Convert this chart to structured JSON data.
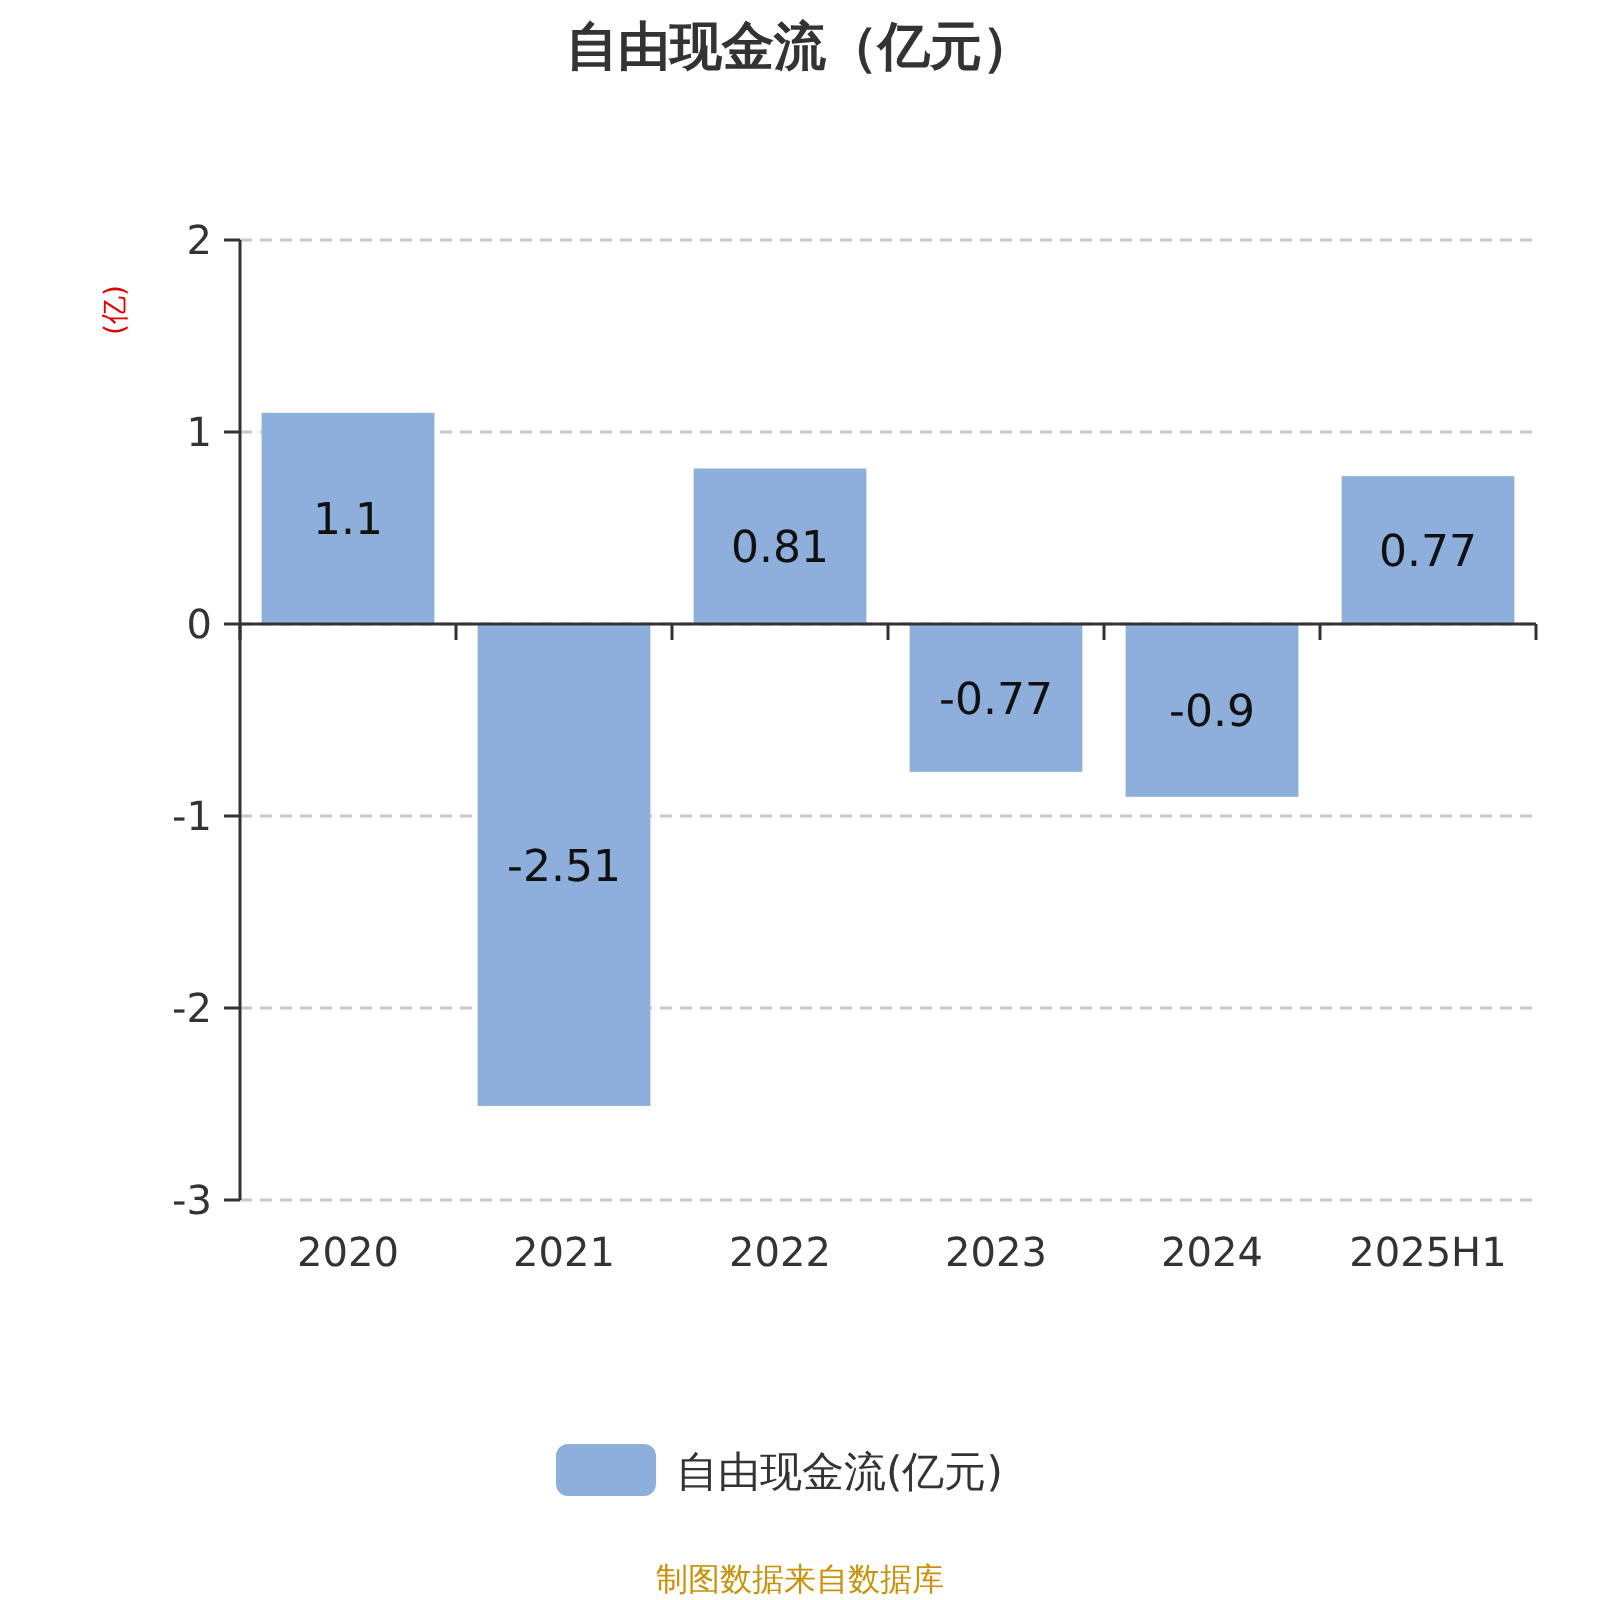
{
  "chart_data": {
    "type": "bar",
    "title": "自由现金流（亿元）",
    "ylabel": "(亿)",
    "categories": [
      "2020",
      "2021",
      "2022",
      "2023",
      "2024",
      "2025H1"
    ],
    "series": [
      {
        "name": "自由现金流(亿元)",
        "color": "#8eaedb",
        "values": [
          1.1,
          -2.51,
          0.81,
          -0.77,
          -0.9,
          0.77
        ]
      }
    ],
    "ylim": [
      -3,
      2
    ],
    "yticks": [
      -3,
      -2,
      -1,
      0,
      1,
      2
    ],
    "grid": "y",
    "legend": "bottom",
    "data_labels": true,
    "annotations": [
      "制图数据来自数据库"
    ]
  }
}
